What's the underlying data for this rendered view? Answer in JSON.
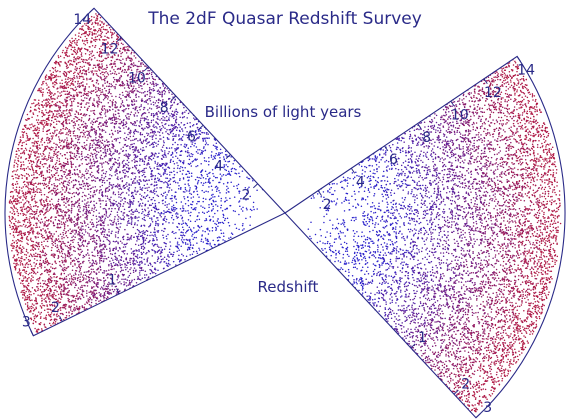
{
  "chart_data": {
    "type": "scatter",
    "title": "The 2dF Quasar Redshift Survey",
    "distance_label": "Billions of light years",
    "redshift_label": "Redshift",
    "wedges": [
      {
        "side": "left",
        "distance_ticks": [
          "14",
          "12",
          "10",
          "8",
          "6",
          "4",
          "2"
        ],
        "redshift_ticks": [
          "1",
          "2",
          "3"
        ]
      },
      {
        "side": "right",
        "distance_ticks": [
          "2",
          "4",
          "6",
          "8",
          "10",
          "12",
          "14"
        ],
        "redshift_ticks": [
          "1",
          "2",
          "3"
        ]
      }
    ],
    "distance_range": [
      0,
      14
    ],
    "redshift_range": [
      0,
      3
    ],
    "point_colors": {
      "near": "#2a22cc",
      "far": "#b01a45"
    },
    "outline_color": "#2a2a88"
  }
}
